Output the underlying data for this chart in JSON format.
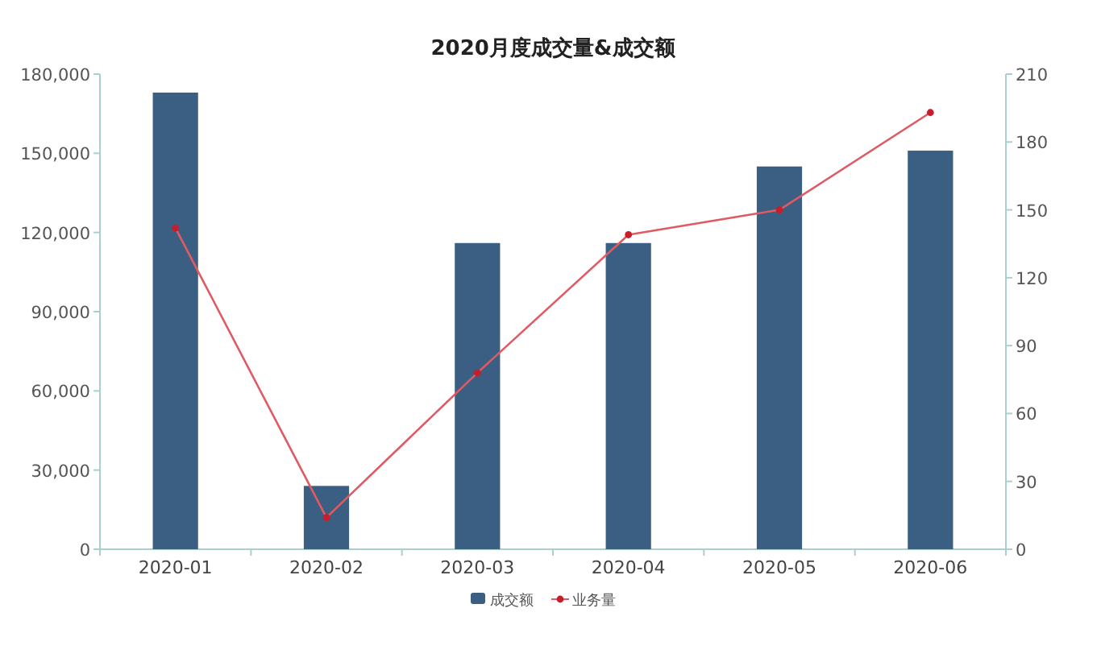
{
  "chart_data": {
    "type": "bar",
    "title": "2020月度成交量&成交额",
    "categories": [
      "2020-01",
      "2020-02",
      "2020-03",
      "2020-04",
      "2020-05",
      "2020-06"
    ],
    "series": [
      {
        "name": "成交额",
        "color": "#3b5f82",
        "values": [
          173000,
          24000,
          116000,
          116000,
          145000,
          151000
        ]
      },
      {
        "name": "业务量",
        "type": "line",
        "axis": "y2",
        "color": "#e05a64",
        "marker": "circle",
        "line_style": "solid",
        "values": [
          142,
          14,
          78,
          139,
          150,
          193
        ]
      }
    ],
    "ylim": [
      0,
      180000
    ],
    "yticks": [
      {
        "value": 0,
        "label": "0"
      },
      {
        "value": 30000,
        "label": "30,000"
      },
      {
        "value": 60000,
        "label": "60,000"
      },
      {
        "value": 90000,
        "label": "90,000"
      },
      {
        "value": 120000,
        "label": "120,000"
      },
      {
        "value": 150000,
        "label": "150,000"
      },
      {
        "value": 180000,
        "label": "180,000"
      }
    ],
    "y2lim": [
      0,
      210
    ],
    "y2ticks": [
      0,
      30,
      60,
      90,
      120,
      150,
      180,
      210
    ],
    "grid": false,
    "legend": "bottom"
  }
}
